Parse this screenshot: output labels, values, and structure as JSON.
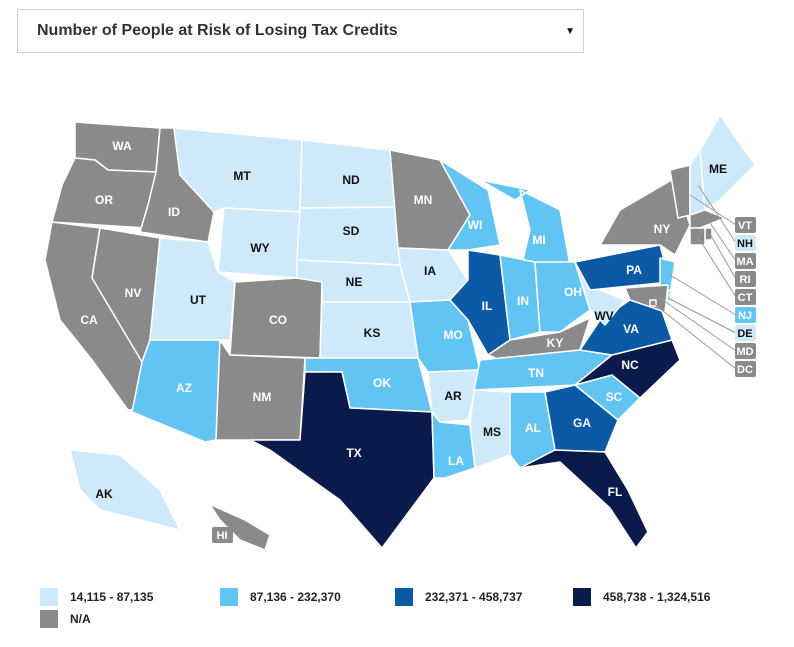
{
  "selector": {
    "label": "Number of People at Risk of Losing Tax Credits",
    "caret": "▼"
  },
  "colors": {
    "bin1": "#cde9fa",
    "bin2": "#62c4f2",
    "bin3": "#0c5aa5",
    "bin4": "#0a1a4a",
    "na": "#8a8a8a"
  },
  "legend": [
    {
      "bin": "bin1",
      "label": "14,115 - 87,135"
    },
    {
      "bin": "bin2",
      "label": "87,136 - 232,370"
    },
    {
      "bin": "bin3",
      "label": "232,371 - 458,737"
    },
    {
      "bin": "bin4",
      "label": "458,738 - 1,324,516"
    },
    {
      "bin": "na",
      "label": "N/A"
    }
  ],
  "states": {
    "WA": "na",
    "OR": "na",
    "CA": "na",
    "NV": "na",
    "ID": "na",
    "MN": "na",
    "CO": "na",
    "NM": "na",
    "KY": "na",
    "NY": "na",
    "VT": "na",
    "MA": "na",
    "RI": "na",
    "CT": "na",
    "MD": "na",
    "DC": "na",
    "HI": "na",
    "MT": "bin1",
    "WY": "bin1",
    "UT": "bin1",
    "ND": "bin1",
    "SD": "bin1",
    "NE": "bin1",
    "KS": "bin1",
    "IA": "bin1",
    "AR": "bin1",
    "MS": "bin1",
    "WV": "bin1",
    "ME": "bin1",
    "NH": "bin1",
    "DE": "bin1",
    "AK": "bin1",
    "AZ": "bin2",
    "OK": "bin2",
    "MO": "bin2",
    "WI": "bin2",
    "MI": "bin2",
    "IN": "bin2",
    "OH": "bin2",
    "TN": "bin2",
    "AL": "bin2",
    "LA": "bin2",
    "SC": "bin2",
    "NJ": "bin2",
    "IL": "bin3",
    "PA": "bin3",
    "VA": "bin3",
    "GA": "bin3",
    "TX": "bin4",
    "NC": "bin4",
    "FL": "bin4"
  }
}
